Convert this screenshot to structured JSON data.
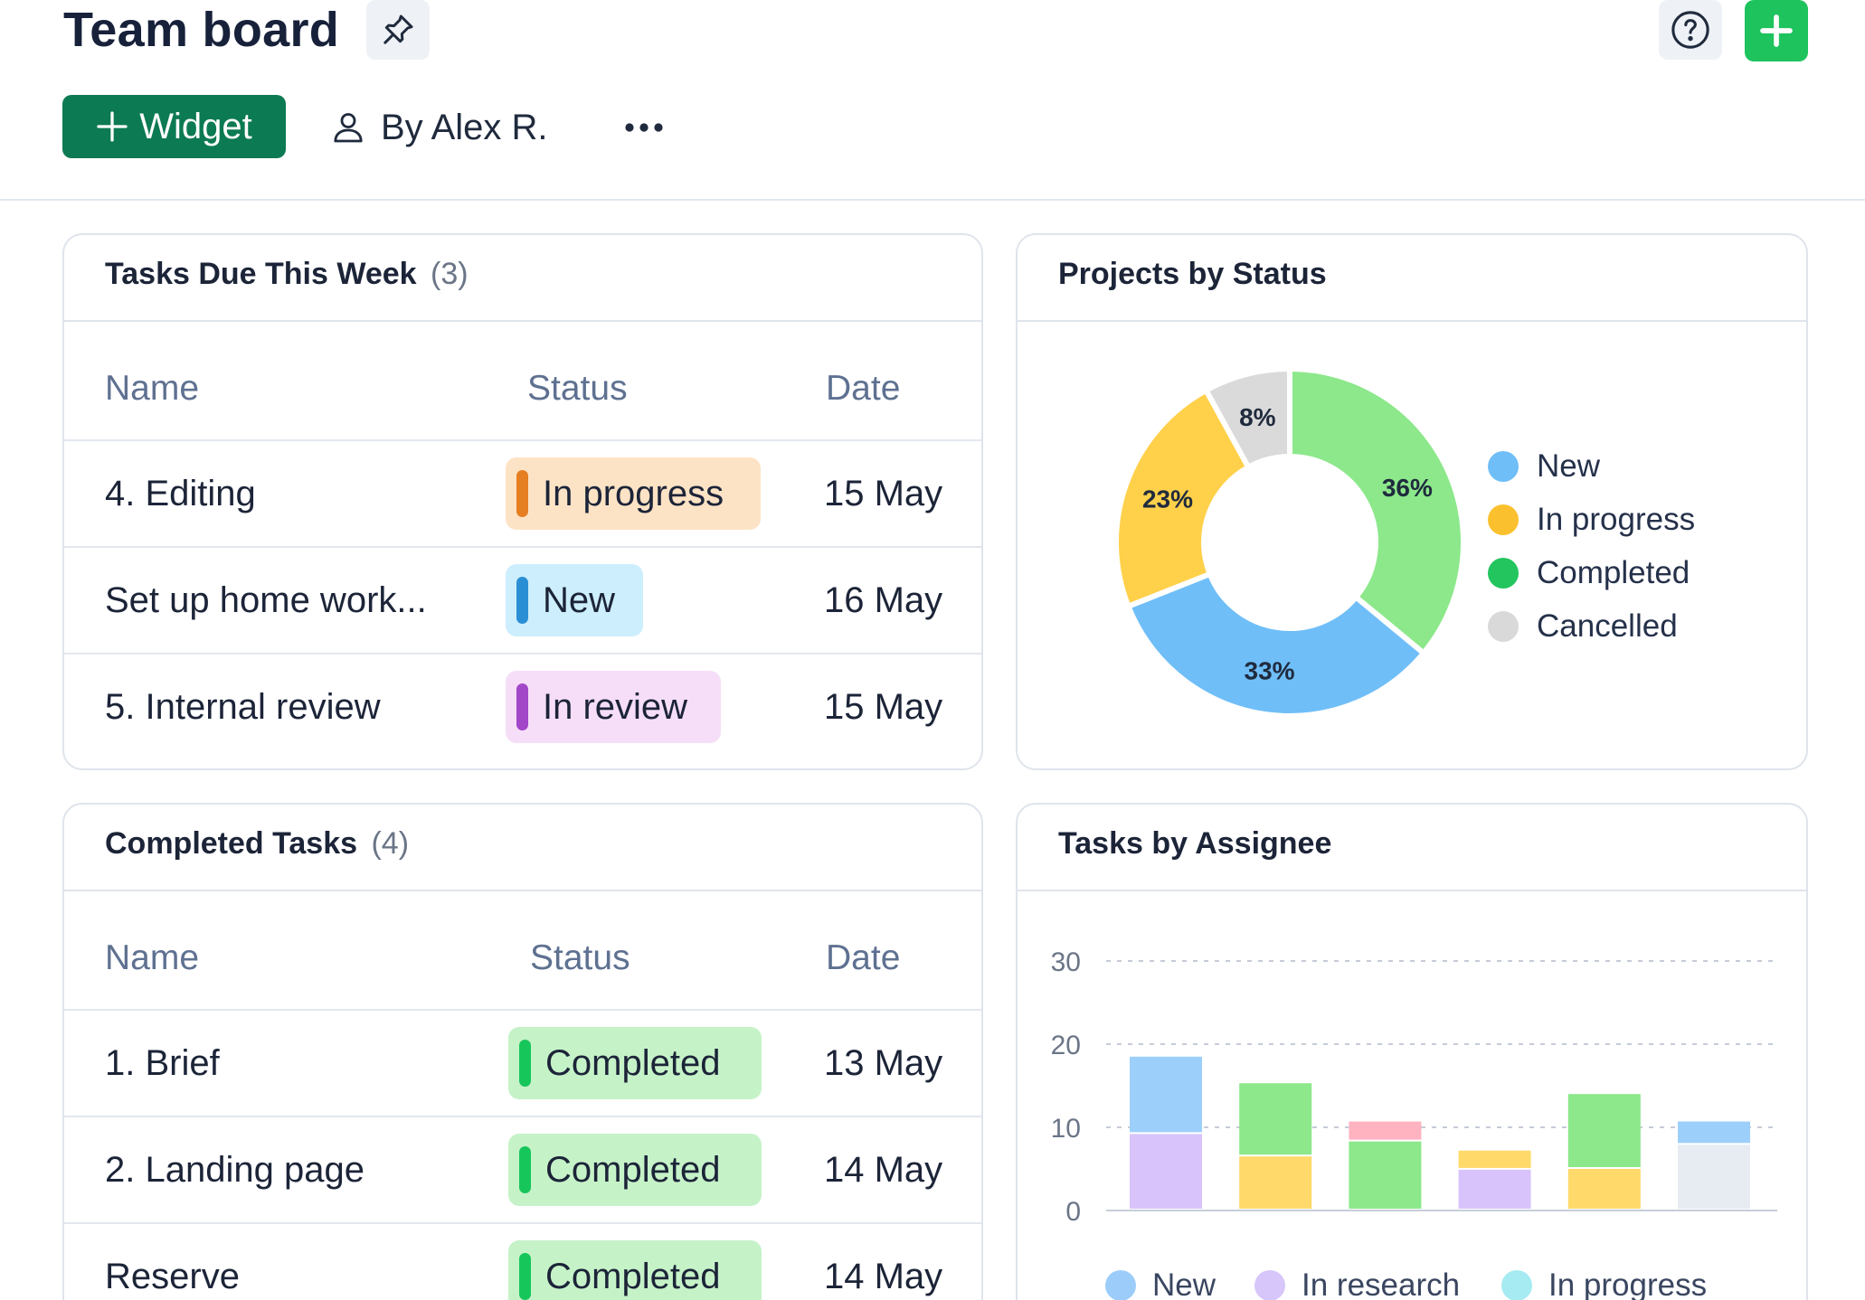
{
  "header": {
    "title": "Team board",
    "widget_label": "Widget",
    "author": "By Alex R."
  },
  "icons": {
    "pin": "pin-icon",
    "help": "question-circle-icon",
    "add": "plus-icon",
    "user": "user-icon",
    "more": "more-horizontal-icon"
  },
  "colors": {
    "accent_dark_green": "#0c7a52",
    "accent_green": "#1ec35e"
  },
  "tasks_due": {
    "title": "Tasks Due This Week",
    "count": "(3)",
    "columns": {
      "name": "Name",
      "status": "Status",
      "date": "Date"
    },
    "rows": [
      {
        "name": "4. Editing",
        "status": "In progress",
        "date": "15 May",
        "bg": "#fde3c5",
        "bar": "#e67e22"
      },
      {
        "name": "Set up home work...",
        "status": "New",
        "date": "16 May",
        "bg": "#cdeefd",
        "bar": "#2b8fd6"
      },
      {
        "name": "5. Internal review",
        "status": "In review",
        "date": "15 May",
        "bg": "#f6def8",
        "bar": "#a347c9"
      }
    ]
  },
  "completed_tasks": {
    "title": "Completed Tasks",
    "count": "(4)",
    "columns": {
      "name": "Name",
      "status": "Status",
      "date": "Date"
    },
    "rows": [
      {
        "name": "1. Brief",
        "status": "Completed",
        "date": "13 May",
        "bg": "#c6f2c8",
        "bar": "#17c65a"
      },
      {
        "name": "2. Landing page",
        "status": "Completed",
        "date": "14 May",
        "bg": "#c6f2c8",
        "bar": "#17c65a"
      },
      {
        "name": "Reserve",
        "status": "Completed",
        "date": "14 May",
        "bg": "#c6f2c8",
        "bar": "#17c65a"
      }
    ]
  },
  "projects_by_status": {
    "title": "Projects by Status",
    "legend": [
      {
        "label": "New",
        "color": "#6fbef8"
      },
      {
        "label": "In progress",
        "color": "#fbc02d"
      },
      {
        "label": "Completed",
        "color": "#22c55e"
      },
      {
        "label": "Cancelled",
        "color": "#d9d9d9"
      }
    ]
  },
  "tasks_by_assignee": {
    "title": "Tasks by Assignee",
    "legend": [
      {
        "label": "New",
        "color": "#9ccdfa"
      },
      {
        "label": "In research",
        "color": "#d6c6fa"
      },
      {
        "label": "In progress",
        "color": "#a6eaf2"
      }
    ]
  },
  "chart_data": [
    {
      "type": "pie",
      "title": "Projects by Status",
      "categories": [
        "Completed",
        "New",
        "In progress",
        "Cancelled"
      ],
      "values": [
        36,
        33,
        23,
        8
      ],
      "labels": [
        "36%",
        "33%",
        "23%",
        "8%"
      ],
      "colors": [
        "#8ce88a",
        "#6fbef8",
        "#ffd04a",
        "#dadada"
      ],
      "legend": "right"
    },
    {
      "type": "bar",
      "title": "Tasks by Assignee",
      "stacked": true,
      "ylim": [
        0,
        30
      ],
      "yticks": [
        0,
        10,
        20,
        30
      ],
      "grid": true,
      "legend": "bottom",
      "stacks": [
        [
          {
            "value": 9.2,
            "color": "#d8c4fb"
          },
          {
            "value": 9.3,
            "color": "#9dcffb"
          }
        ],
        [
          {
            "value": 6.5,
            "color": "#ffd96a"
          },
          {
            "value": 8.8,
            "color": "#8ce88a"
          }
        ],
        [
          {
            "value": 8.3,
            "color": "#8ce88a"
          },
          {
            "value": 2.4,
            "color": "#ffb3c1"
          }
        ],
        [
          {
            "value": 4.9,
            "color": "#d8c4fb"
          },
          {
            "value": 2.3,
            "color": "#ffd96a"
          }
        ],
        [
          {
            "value": 5.0,
            "color": "#ffd96a"
          },
          {
            "value": 9.0,
            "color": "#8ce88a"
          }
        ],
        [
          {
            "value": 7.9,
            "color": "#e7ecf3"
          },
          {
            "value": 2.8,
            "color": "#9dcffb"
          }
        ]
      ]
    }
  ]
}
